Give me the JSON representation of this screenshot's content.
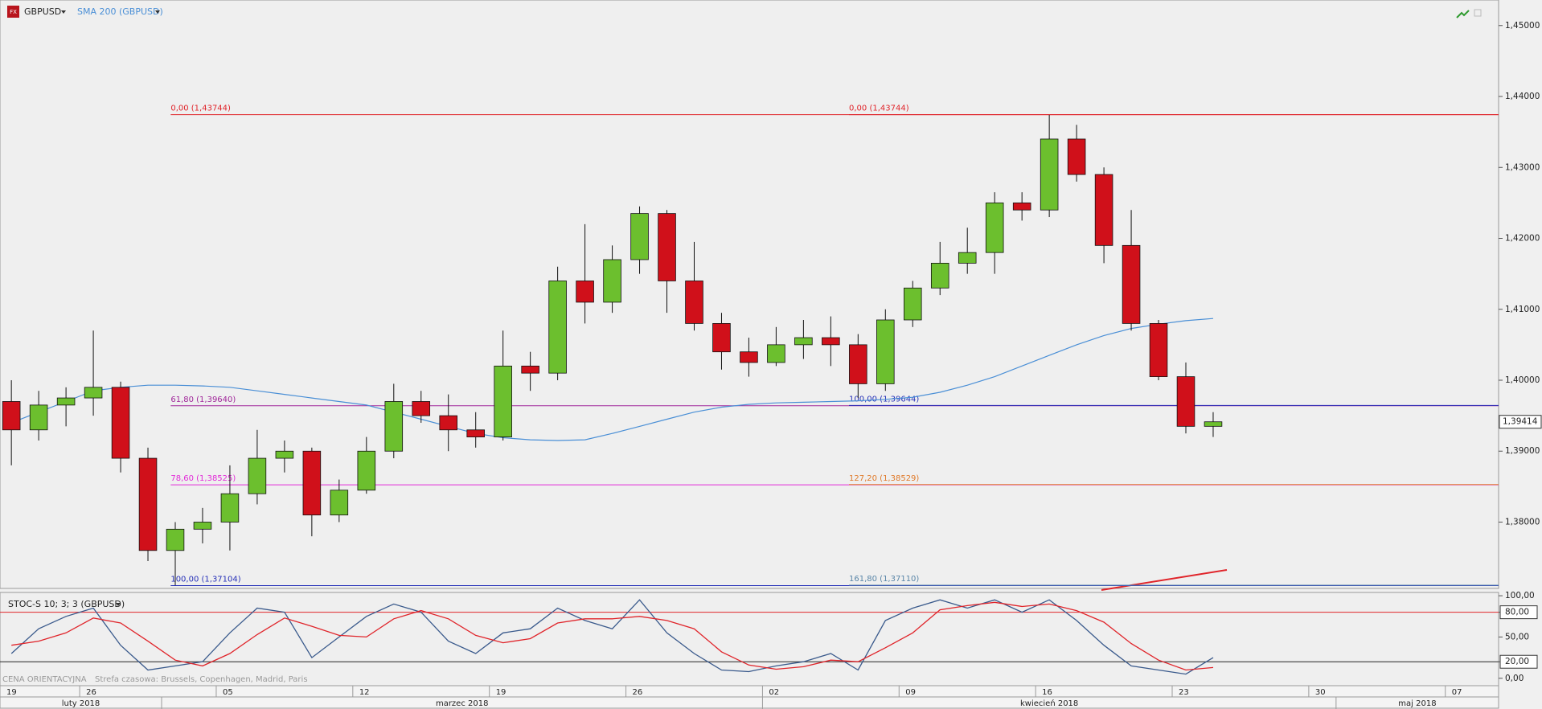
{
  "chart_data": [
    {
      "type": "candlestick",
      "symbol": "GBPUSD",
      "x": [
        -15,
        -9,
        -3,
        3,
        9,
        15,
        21,
        27,
        33,
        39,
        45,
        51,
        57,
        63,
        69,
        75,
        81,
        87,
        93,
        99,
        105,
        111,
        117,
        123,
        129,
        135,
        141,
        147,
        153,
        159,
        165,
        171,
        177,
        183,
        189,
        195,
        201,
        207,
        213,
        219,
        225,
        231,
        237,
        243,
        249
      ],
      "open": [
        1.397,
        1.393,
        1.3965,
        1.3975,
        1.399,
        1.389,
        1.376,
        1.379,
        1.38,
        1.384,
        1.389,
        1.39,
        1.381,
        1.3845,
        1.39,
        1.397,
        1.395,
        1.393,
        1.392,
        1.402,
        1.401,
        1.414,
        1.411,
        1.417,
        1.4235,
        1.414,
        1.408,
        1.404,
        1.4025,
        1.405,
        1.406,
        1.405,
        1.3995,
        1.4085,
        1.413,
        1.4165,
        1.418,
        1.425,
        1.424,
        1.434,
        1.429,
        1.419,
        1.408,
        1.4005,
        1.3935
      ],
      "high": [
        1.4,
        1.3985,
        1.399,
        1.407,
        1.3998,
        1.3905,
        1.38,
        1.382,
        1.388,
        1.393,
        1.3915,
        1.3905,
        1.386,
        1.392,
        1.3995,
        1.3985,
        1.398,
        1.3955,
        1.407,
        1.404,
        1.416,
        1.422,
        1.419,
        1.4245,
        1.424,
        1.4195,
        1.4095,
        1.406,
        1.4075,
        1.4085,
        1.409,
        1.4065,
        1.41,
        1.414,
        1.4195,
        1.4215,
        1.4265,
        1.4265,
        1.4374,
        1.436,
        1.43,
        1.424,
        1.4085,
        1.4025,
        1.3955
      ],
      "low": [
        1.388,
        1.3915,
        1.3935,
        1.395,
        1.387,
        1.3745,
        1.3711,
        1.377,
        1.376,
        1.3825,
        1.387,
        1.378,
        1.38,
        1.384,
        1.389,
        1.394,
        1.39,
        1.3905,
        1.3915,
        1.3985,
        1.4,
        1.408,
        1.4095,
        1.415,
        1.4095,
        1.407,
        1.4015,
        1.4005,
        1.402,
        1.403,
        1.402,
        1.3975,
        1.3985,
        1.4075,
        1.412,
        1.415,
        1.415,
        1.4225,
        1.423,
        1.428,
        1.4165,
        1.407,
        1.4,
        1.3925,
        1.392
      ],
      "close": [
        1.393,
        1.3965,
        1.3975,
        1.399,
        1.389,
        1.376,
        1.379,
        1.38,
        1.384,
        1.389,
        1.39,
        1.381,
        1.3845,
        1.39,
        1.397,
        1.395,
        1.393,
        1.392,
        1.402,
        1.401,
        1.414,
        1.411,
        1.417,
        1.4235,
        1.414,
        1.408,
        1.404,
        1.4025,
        1.405,
        1.406,
        1.405,
        1.3995,
        1.4085,
        1.413,
        1.4165,
        1.418,
        1.425,
        1.424,
        1.434,
        1.429,
        1.419,
        1.408,
        1.4005,
        1.3935,
        1.39414
      ],
      "up_color": "#6cbf2e",
      "down_color": "#d0101a",
      "series": [
        {
          "name": "SMA 200 (GBPUSD)",
          "color": "#4a8fd6",
          "values": [
            1.394,
            1.3955,
            1.397,
            1.3985,
            1.399,
            1.3993,
            1.3993,
            1.3992,
            1.399,
            1.3985,
            1.398,
            1.3975,
            1.397,
            1.3965,
            1.3955,
            1.3945,
            1.3935,
            1.3925,
            1.3919,
            1.3916,
            1.3915,
            1.3916,
            1.3925,
            1.3935,
            1.3945,
            1.3955,
            1.3962,
            1.3966,
            1.3968,
            1.3969,
            1.397,
            1.3971,
            1.3973,
            1.3976,
            1.3983,
            1.3993,
            1.4005,
            1.402,
            1.4035,
            1.405,
            1.4063,
            1.4073,
            1.4079,
            1.4084,
            1.4087
          ]
        }
      ],
      "xlim": [
        -17.5,
        311.7
      ],
      "ylim": [
        1.37065,
        1.4536
      ],
      "yticks": [
        {
          "value": 1.45,
          "label": "1,45000"
        },
        {
          "value": 1.44,
          "label": "1,44000"
        },
        {
          "value": 1.43,
          "label": "1,43000"
        },
        {
          "value": 1.42,
          "label": "1,42000"
        },
        {
          "value": 1.41,
          "label": "1,41000"
        },
        {
          "value": 1.4,
          "label": "1,40000"
        },
        {
          "value": 1.39,
          "label": "1,39000"
        },
        {
          "value": 1.38,
          "label": "1,38000"
        }
      ],
      "last_price": {
        "value": 1.39414,
        "label": "1,39414"
      },
      "fib_levels": [
        {
          "label": "0,00 (1,43744)",
          "value": 1.43744,
          "x_start": 20,
          "color": "#e0242a"
        },
        {
          "label": "61,80 (1,39640)",
          "value": 1.3964,
          "x_start": 20,
          "color": "#a0269a"
        },
        {
          "label": "78,60 (1,38525)",
          "value": 1.38525,
          "x_start": 20,
          "color": "#e22ad8"
        },
        {
          "label": "100,00 (1,37104)",
          "value": 1.37104,
          "x_start": 20,
          "color": "#2630b8"
        },
        {
          "label": "0,00 (1,43744)",
          "value": 1.43744,
          "x_start": 169,
          "color": "#e0242a"
        },
        {
          "label": "100,00 (1,39644)",
          "value": 1.39644,
          "x_start": 169,
          "color": "#2630b8"
        },
        {
          "label": "127,20 (1,38529)",
          "value": 1.38529,
          "x_start": 169,
          "color": "#e07a2a"
        },
        {
          "label": "161,80 (1,37110)",
          "value": 1.3711,
          "x_start": 169,
          "color": "#5a86a8"
        }
      ],
      "xticks": [
        {
          "value": -30,
          "label": "19"
        },
        {
          "value": 0,
          "label": "26"
        },
        {
          "value": 30,
          "label": "05"
        },
        {
          "value": 60,
          "label": "12"
        },
        {
          "value": 90,
          "label": "19"
        },
        {
          "value": 120,
          "label": "26"
        },
        {
          "value": 150,
          "label": "02"
        },
        {
          "value": 180,
          "label": "09"
        },
        {
          "value": 210,
          "label": "16"
        },
        {
          "value": 240,
          "label": "23"
        },
        {
          "value": 270,
          "label": "30"
        },
        {
          "value": 300,
          "label": "07"
        }
      ],
      "months": [
        {
          "value": -102,
          "label": "luty 2018"
        },
        {
          "value": 18,
          "label": "marzec 2018"
        },
        {
          "value": 150,
          "label": "kwiecień 2018"
        },
        {
          "value": 276,
          "label": "maj 2018"
        }
      ]
    },
    {
      "type": "line",
      "title": "STOC-S 10; 3; 3 (GBPUSD)",
      "series": [
        {
          "color": "#3a5a8c",
          "values": [
            30,
            60,
            75,
            85,
            40,
            10,
            15,
            20,
            55,
            85,
            80,
            25,
            50,
            75,
            90,
            80,
            45,
            30,
            55,
            60,
            85,
            70,
            60,
            95,
            55,
            30,
            10,
            8,
            15,
            20,
            30,
            10,
            70,
            85,
            95,
            85,
            95,
            80,
            95,
            70,
            40,
            15,
            10,
            5,
            25
          ]
        },
        {
          "color": "#e0242a",
          "values": [
            40,
            45,
            55,
            73,
            67,
            45,
            22,
            15,
            30,
            53,
            73,
            63,
            52,
            50,
            72,
            82,
            72,
            52,
            43,
            48,
            67,
            72,
            72,
            75,
            70,
            60,
            32,
            16,
            11,
            14,
            22,
            20,
            37,
            55,
            83,
            88,
            92,
            87,
            90,
            82,
            68,
            42,
            22,
            10,
            13
          ]
        }
      ],
      "ylim": [
        -9,
        104
      ],
      "yticks": [
        {
          "value": 100,
          "label": "100,00"
        },
        {
          "value": 80,
          "label": "80,00"
        },
        {
          "value": 50,
          "label": "50,00"
        },
        {
          "value": 20,
          "label": "20,00"
        },
        {
          "value": 0,
          "label": "0,00"
        }
      ],
      "levels": [
        {
          "value": 80,
          "color": "#e0242a"
        },
        {
          "value": 20,
          "color": "#222222"
        }
      ],
      "notes": [
        "CENA ORIENTACYJNA",
        "Strefa czasowa: Brussels, Copenhagen, Madrid, Paris"
      ]
    }
  ]
}
